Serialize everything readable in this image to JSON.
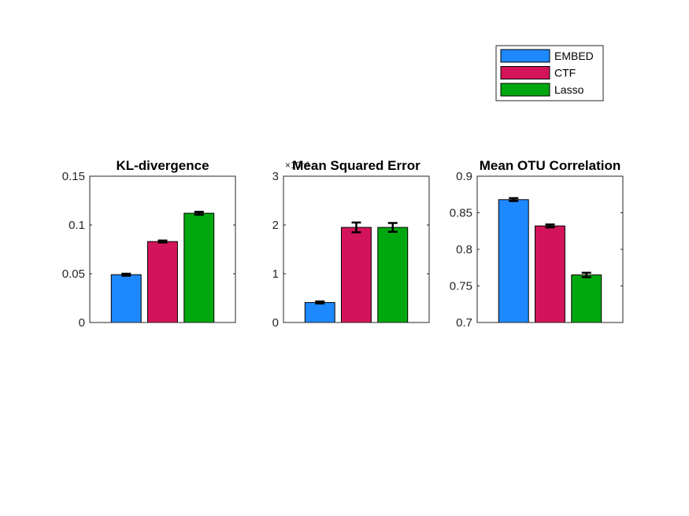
{
  "chart_data": [
    {
      "type": "bar",
      "title": "KL-divergence",
      "categories": [
        "EMBED",
        "CTF",
        "Lasso"
      ],
      "values": [
        0.049,
        0.083,
        0.112
      ],
      "errors": [
        0.001,
        0.001,
        0.0015
      ],
      "ylim": [
        0,
        0.15
      ],
      "yticks": [
        0,
        0.05,
        0.1,
        0.15
      ],
      "ytick_labels": [
        "0",
        "0.05",
        "0.1",
        "0.15"
      ],
      "exponent_label": ""
    },
    {
      "type": "bar",
      "title": "Mean Squared Error",
      "categories": [
        "EMBED",
        "CTF",
        "Lasso"
      ],
      "values": [
        0.41,
        1.95,
        1.95
      ],
      "errors": [
        0.02,
        0.1,
        0.09
      ],
      "ylim": [
        0,
        3
      ],
      "yticks": [
        0,
        1,
        2,
        3
      ],
      "ytick_labels": [
        "0",
        "1",
        "2",
        "3"
      ],
      "exponent_label": "×10⁻³"
    },
    {
      "type": "bar",
      "title": "Mean OTU Correlation",
      "categories": [
        "EMBED",
        "CTF",
        "Lasso"
      ],
      "values": [
        0.868,
        0.832,
        0.765
      ],
      "errors": [
        0.002,
        0.002,
        0.003
      ],
      "ylim": [
        0.7,
        0.9
      ],
      "yticks": [
        0.7,
        0.75,
        0.8,
        0.85,
        0.9
      ],
      "ytick_labels": [
        "0.7",
        "0.75",
        "0.8",
        "0.85",
        "0.9"
      ],
      "exponent_label": ""
    }
  ],
  "legend": {
    "placement": "top-right",
    "entries": [
      {
        "name": "EMBED",
        "color": "#1E88FF"
      },
      {
        "name": "CTF",
        "color": "#D4145A"
      },
      {
        "name": "Lasso",
        "color": "#00A80F"
      }
    ]
  },
  "grid": false
}
